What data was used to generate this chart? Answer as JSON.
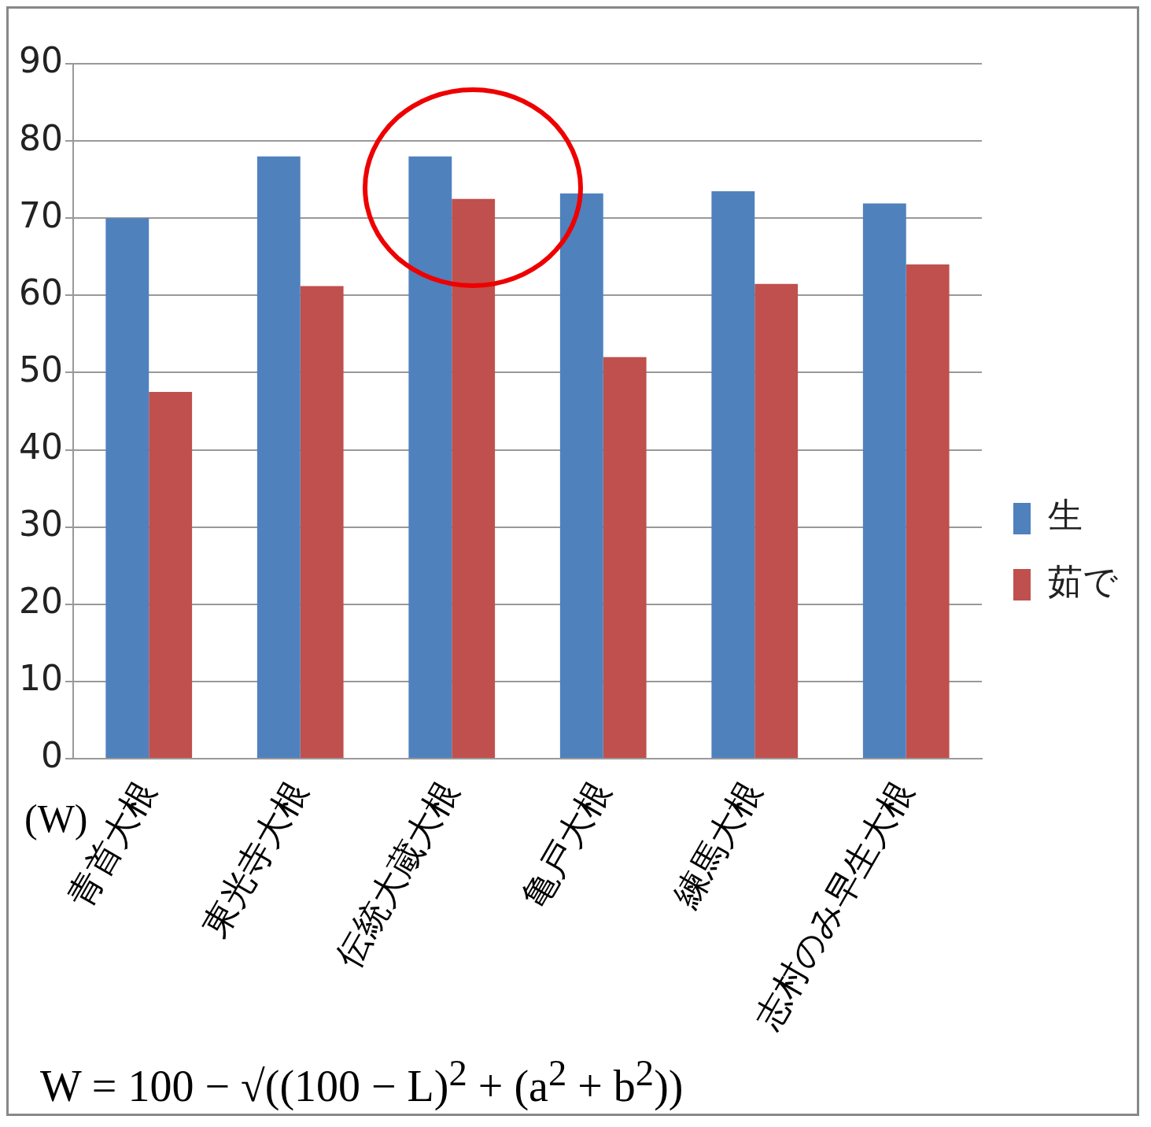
{
  "chart_data": {
    "type": "bar",
    "categories": [
      "青首大根",
      "東光寺大根",
      "伝統大蔵大根",
      "亀戸大根",
      "練馬大根",
      "志村のみ早生大根"
    ],
    "series": [
      {
        "name": "生",
        "color": "#4f81bd",
        "values": [
          70.0,
          78.0,
          78.0,
          73.2,
          73.5,
          71.9
        ]
      },
      {
        "name": "茹で",
        "color": "#c0504d",
        "values": [
          47.5,
          61.2,
          72.5,
          52.0,
          61.5,
          64.0
        ]
      }
    ],
    "ylim": [
      0,
      90
    ],
    "yticks": [
      0,
      10,
      20,
      30,
      40,
      50,
      60,
      70,
      80,
      90
    ],
    "grid": "y",
    "legend": "right",
    "annotations": [
      "(W)",
      "W = 100 − √((100 − L)$^{2}$ + (a$^{2}$ + b$^{2}$))"
    ]
  }
}
